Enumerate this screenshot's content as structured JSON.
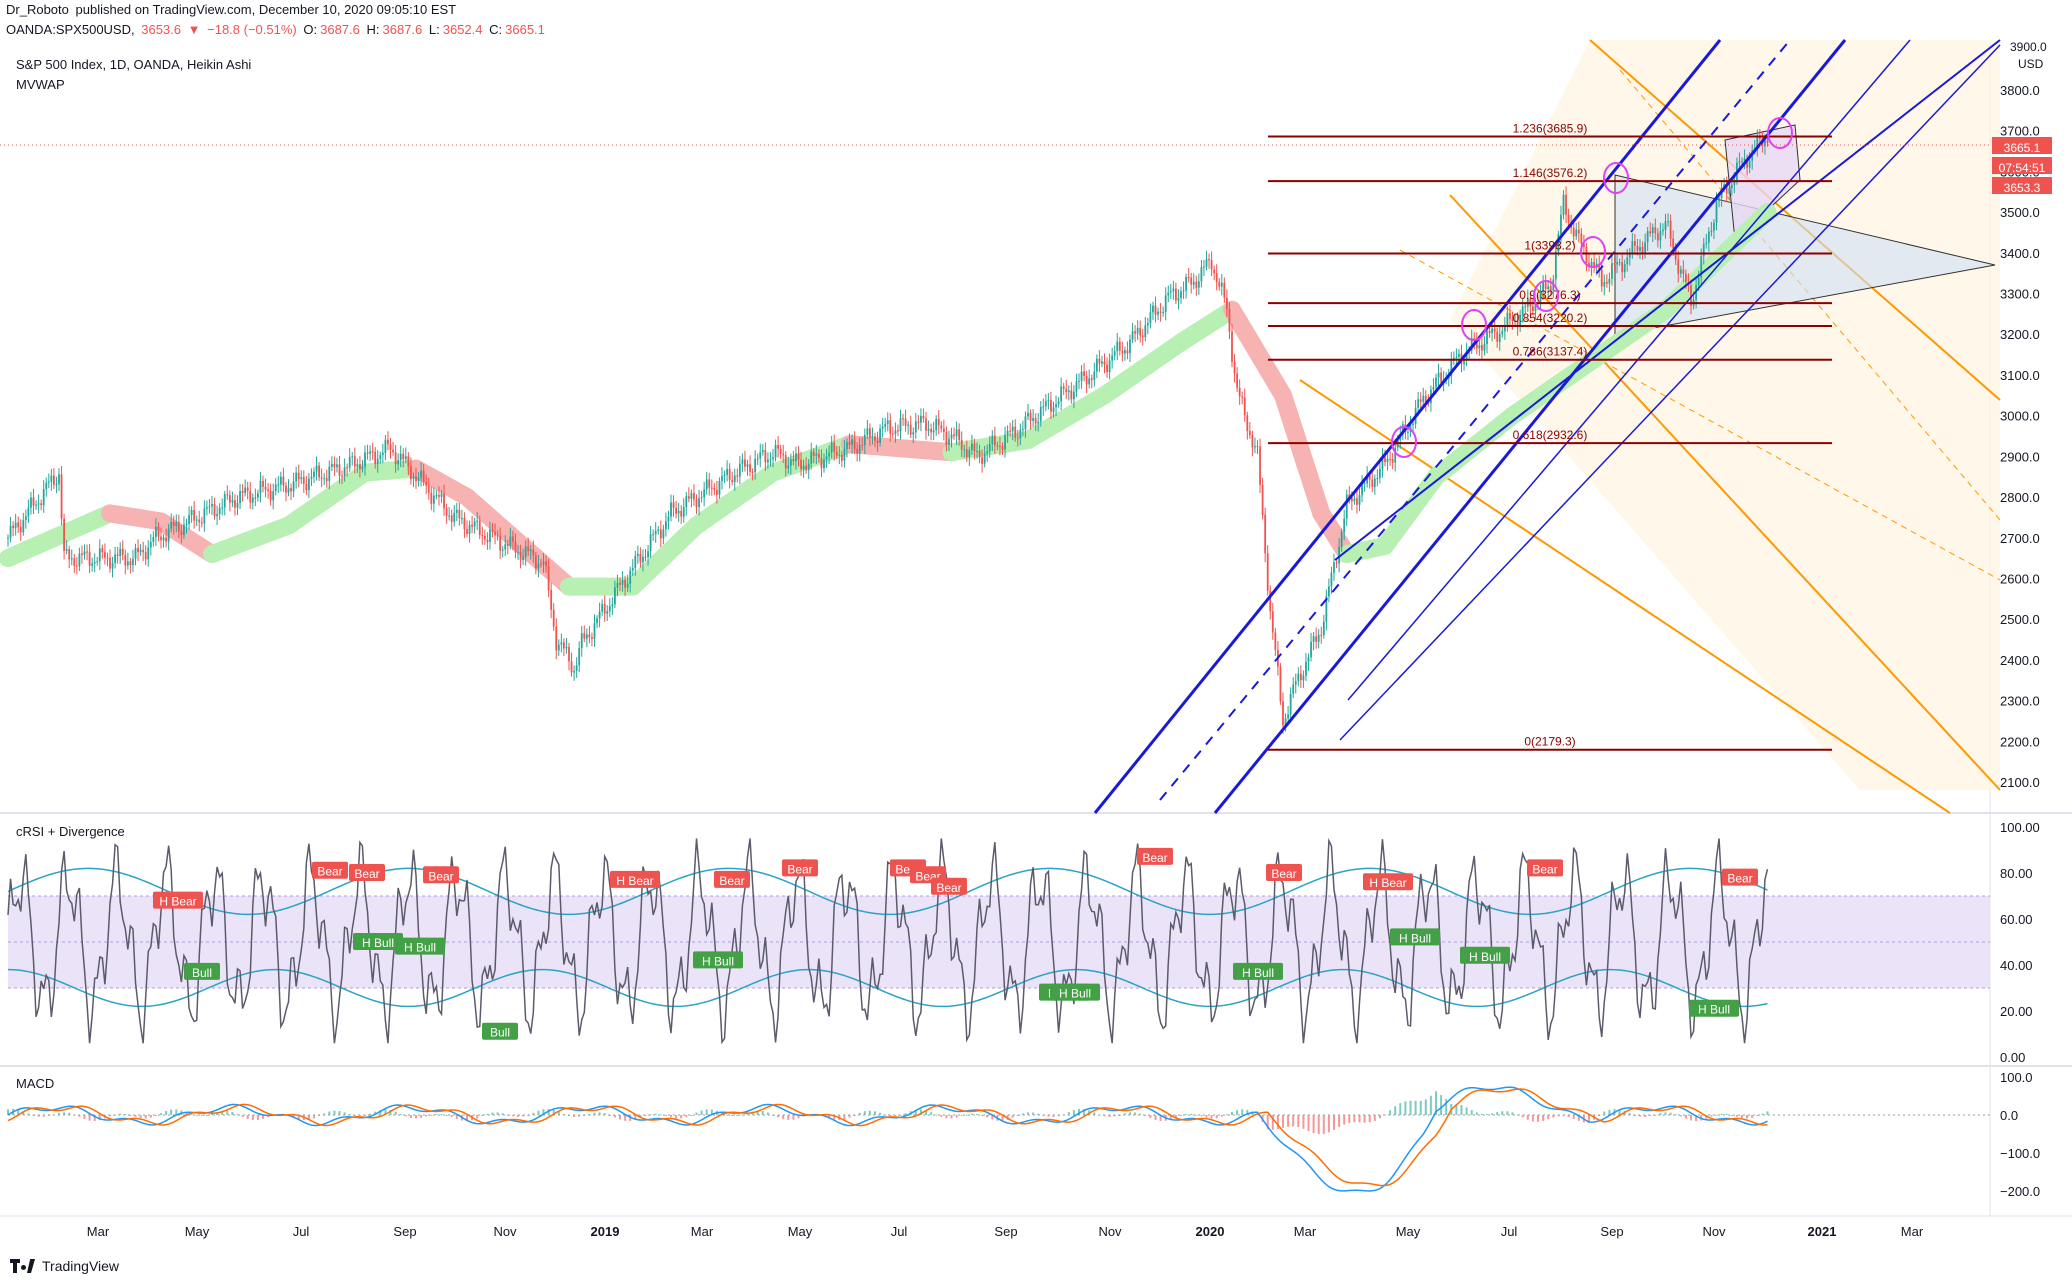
{
  "header": {
    "author": "Dr_Roboto",
    "published": "published on TradingView.com, December 10, 2020 09:05:10 EST",
    "symbol": "OANDA:SPX500USD,",
    "price": "3653.6",
    "change": "−18.8 (−0.51%)",
    "o_label": "O:",
    "o": "3687.6",
    "h_label": "H:",
    "h": "3687.6",
    "l_label": "L:",
    "l": "3652.4",
    "c_label": "C:",
    "c": "3665.1",
    "title": "S&P 500 Index, 1D, OANDA, Heikin Ashi",
    "indicator": "MVWAP"
  },
  "colors": {
    "bull": "#26a69a",
    "bear": "#ef5350",
    "channel": "#1a1ad6",
    "pitchfork": "#ff9800",
    "fib": "#8b0000",
    "vwap_up": "#b7f0b2",
    "vwap_down": "#f7b2b2",
    "circle": "#e040fb",
    "rsi": "#5b5b6b",
    "band": "#29a3c7",
    "macd": "#2196f3",
    "signal": "#ff6d00"
  },
  "price_labels": {
    "unit": "USD",
    "last": "3665.1",
    "countdown": "07:54:51",
    "low": "3653.3",
    "top": "3900.0"
  },
  "chart_data": [
    {
      "type": "candlestick",
      "title": "S&P 500 Index, 1D, OANDA, Heikin Ashi",
      "ylabel": "USD",
      "ylim": [
        2050,
        3910
      ],
      "y_ticks": [
        "3800.0",
        "3700.0",
        "3600.0",
        "3500.0",
        "3400.0",
        "3300.0",
        "3200.0",
        "3100.0",
        "3000.0",
        "2900.0",
        "2800.0",
        "2700.0",
        "2600.0",
        "2500.0",
        "2400.0",
        "2300.0",
        "2200.0",
        "2100.0"
      ],
      "x_ticks": [
        "Mar",
        "May",
        "Jul",
        "Sep",
        "Nov",
        "2019",
        "Mar",
        "May",
        "Jul",
        "Sep",
        "Nov",
        "2020",
        "Mar",
        "May",
        "Jul",
        "Sep",
        "Nov",
        "2021",
        "Mar"
      ],
      "x_ticks_bold": [
        "2019",
        "2020",
        "2021"
      ],
      "trend_points": [
        [
          0,
          2700
        ],
        [
          20,
          2860
        ],
        [
          22,
          2650
        ],
        [
          50,
          2650
        ],
        [
          58,
          2700
        ],
        [
          90,
          2800
        ],
        [
          110,
          2830
        ],
        [
          135,
          2880
        ],
        [
          150,
          2920
        ],
        [
          175,
          2750
        ],
        [
          190,
          2700
        ],
        [
          210,
          2640
        ],
        [
          215,
          2450
        ],
        [
          222,
          2380
        ],
        [
          225,
          2440
        ],
        [
          240,
          2580
        ],
        [
          260,
          2760
        ],
        [
          285,
          2860
        ],
        [
          300,
          2910
        ],
        [
          310,
          2880
        ],
        [
          330,
          2920
        ],
        [
          345,
          2970
        ],
        [
          360,
          2980
        ],
        [
          370,
          2950
        ],
        [
          380,
          2900
        ],
        [
          395,
          2960
        ],
        [
          405,
          3010
        ],
        [
          420,
          3080
        ],
        [
          440,
          3180
        ],
        [
          455,
          3290
        ],
        [
          465,
          3330
        ],
        [
          472,
          3380
        ],
        [
          478,
          3260
        ],
        [
          482,
          3060
        ],
        [
          490,
          2900
        ],
        [
          495,
          2520
        ],
        [
          500,
          2250
        ],
        [
          505,
          2340
        ],
        [
          515,
          2480
        ],
        [
          525,
          2780
        ],
        [
          540,
          2880
        ],
        [
          555,
          3040
        ],
        [
          570,
          3150
        ],
        [
          585,
          3210
        ],
        [
          595,
          3260
        ],
        [
          605,
          3320
        ],
        [
          610,
          3520
        ],
        [
          615,
          3440
        ],
        [
          625,
          3330
        ],
        [
          640,
          3420
        ],
        [
          650,
          3470
        ],
        [
          660,
          3280
        ],
        [
          670,
          3520
        ],
        [
          680,
          3620
        ],
        [
          690,
          3690
        ]
      ],
      "mvwap": [
        [
          0,
          2650
        ],
        [
          40,
          2760
        ],
        [
          60,
          2740
        ],
        [
          80,
          2660
        ],
        [
          110,
          2730
        ],
        [
          140,
          2860
        ],
        [
          160,
          2870
        ],
        [
          180,
          2800
        ],
        [
          200,
          2690
        ],
        [
          220,
          2580
        ],
        [
          245,
          2580
        ],
        [
          270,
          2730
        ],
        [
          300,
          2860
        ],
        [
          330,
          2930
        ],
        [
          370,
          2910
        ],
        [
          400,
          2940
        ],
        [
          430,
          3050
        ],
        [
          460,
          3180
        ],
        [
          480,
          3260
        ],
        [
          500,
          3050
        ],
        [
          515,
          2760
        ],
        [
          525,
          2660
        ],
        [
          540,
          2680
        ],
        [
          560,
          2850
        ],
        [
          590,
          3000
        ],
        [
          620,
          3130
        ],
        [
          650,
          3260
        ],
        [
          690,
          3500
        ]
      ],
      "fib_levels": [
        {
          "label": "1.236(3685.9)",
          "value": 3685.9
        },
        {
          "label": "1.146(3576.2)",
          "value": 3576.2
        },
        {
          "label": "1(3398.2)",
          "value": 3398.2
        },
        {
          "label": "0.9(3276.3)",
          "value": 3276.3
        },
        {
          "label": "0.854(3220.2)",
          "value": 3220.2
        },
        {
          "label": "0.786(3137.4)",
          "value": 3137.4
        },
        {
          "label": "0.618(2932.6)",
          "value": 2932.6
        },
        {
          "label": "0(2179.3)",
          "value": 2179.3
        }
      ]
    },
    {
      "type": "line",
      "title": "cRSI + Divergence",
      "ylim": [
        0,
        100
      ],
      "y_ticks": [
        "100.00",
        "80.00",
        "60.00",
        "40.00",
        "20.00",
        "0.00"
      ],
      "band_upper": 70,
      "band_lower": 30,
      "signals": [
        {
          "label": "Bear",
          "kind": "bear",
          "x": 330,
          "y": 81
        },
        {
          "label": "Bear",
          "kind": "bear",
          "x": 367,
          "y": 80
        },
        {
          "label": "Bear",
          "kind": "bear",
          "x": 441,
          "y": 79
        },
        {
          "label": "H Bear",
          "kind": "bear",
          "x": 178,
          "y": 68
        },
        {
          "label": "H Bear",
          "kind": "bear",
          "x": 635,
          "y": 77
        },
        {
          "label": "Bear",
          "kind": "bear",
          "x": 732,
          "y": 77
        },
        {
          "label": "Bear",
          "kind": "bear",
          "x": 800,
          "y": 82
        },
        {
          "label": "Bear",
          "kind": "bear",
          "x": 908,
          "y": 82
        },
        {
          "label": "Bear",
          "kind": "bear",
          "x": 928,
          "y": 79
        },
        {
          "label": "Bear",
          "kind": "bear",
          "x": 949,
          "y": 74
        },
        {
          "label": "Bear",
          "kind": "bear",
          "x": 1155,
          "y": 87
        },
        {
          "label": "Bear",
          "kind": "bear",
          "x": 1284,
          "y": 80
        },
        {
          "label": "H Bear",
          "kind": "bear",
          "x": 1388,
          "y": 76
        },
        {
          "label": "Bear",
          "kind": "bear",
          "x": 1545,
          "y": 82
        },
        {
          "label": "Bear",
          "kind": "bear",
          "x": 1740,
          "y": 78
        },
        {
          "label": "Bull",
          "kind": "bull",
          "x": 202,
          "y": 37
        },
        {
          "label": "H Bull",
          "kind": "bull",
          "x": 378,
          "y": 50
        },
        {
          "label": "H Bull",
          "kind": "bull",
          "x": 420,
          "y": 48
        },
        {
          "label": "Bull",
          "kind": "bull",
          "x": 500,
          "y": 11
        },
        {
          "label": "H Bull",
          "kind": "bull",
          "x": 718,
          "y": 42
        },
        {
          "label": "H Bull",
          "kind": "bull",
          "x": 1064,
          "y": 28
        },
        {
          "label": "H Bull",
          "kind": "bull",
          "x": 1258,
          "y": 37
        },
        {
          "label": "H Bull",
          "kind": "bull",
          "x": 1415,
          "y": 52
        },
        {
          "label": "H Bull",
          "kind": "bull",
          "x": 1485,
          "y": 44
        },
        {
          "label": "H Bull",
          "kind": "bull",
          "x": 1714,
          "y": 21
        },
        {
          "label": "H Bull",
          "kind": "bull",
          "x": 1075,
          "y": 28
        }
      ]
    },
    {
      "type": "line",
      "title": "MACD",
      "ylim": [
        -250,
        110
      ],
      "y_ticks": [
        "100.0",
        "0.0",
        "−100.0",
        "−200.0"
      ]
    }
  ],
  "footer": {
    "brand": "TradingView"
  }
}
